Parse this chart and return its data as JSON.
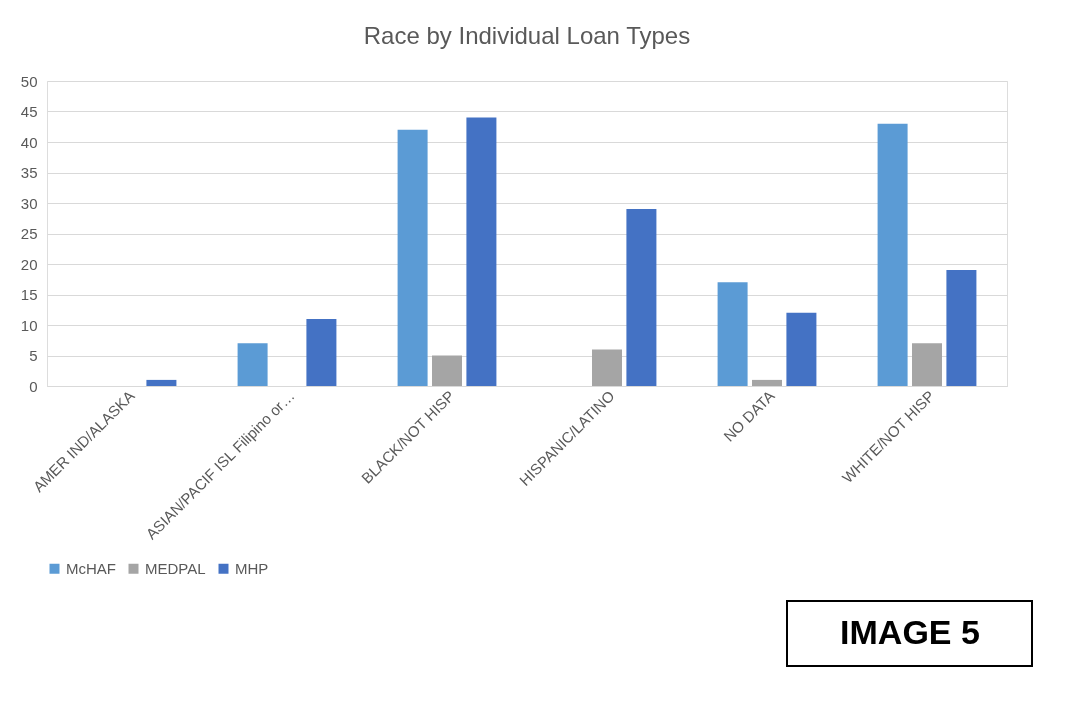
{
  "chart_data": {
    "type": "bar",
    "title": "Race by Individual Loan Types",
    "categories": [
      "AMER IND/ALASKA",
      "ASIAN/PACIF ISL Filipino or…",
      "BLACK/NOT HISP",
      "HISPANIC/LATINO",
      "NO DATA",
      "WHITE/NOT HISP"
    ],
    "series": [
      {
        "name": "McHAF",
        "color": "#5b9bd5",
        "values": [
          null,
          7,
          42,
          null,
          17,
          43
        ]
      },
      {
        "name": "MEDPAL",
        "color": "#a5a5a5",
        "values": [
          null,
          null,
          5,
          6,
          1,
          7
        ]
      },
      {
        "name": "MHP",
        "color": "#4472c4",
        "values": [
          1,
          11,
          44,
          29,
          12,
          19
        ]
      }
    ],
    "ylim": [
      0,
      50
    ],
    "yticks": [
      0,
      5,
      10,
      15,
      20,
      25,
      30,
      35,
      40,
      45,
      50
    ],
    "grid": "y",
    "legend": "bottom",
    "annotations": [
      "IMAGE 5"
    ]
  }
}
